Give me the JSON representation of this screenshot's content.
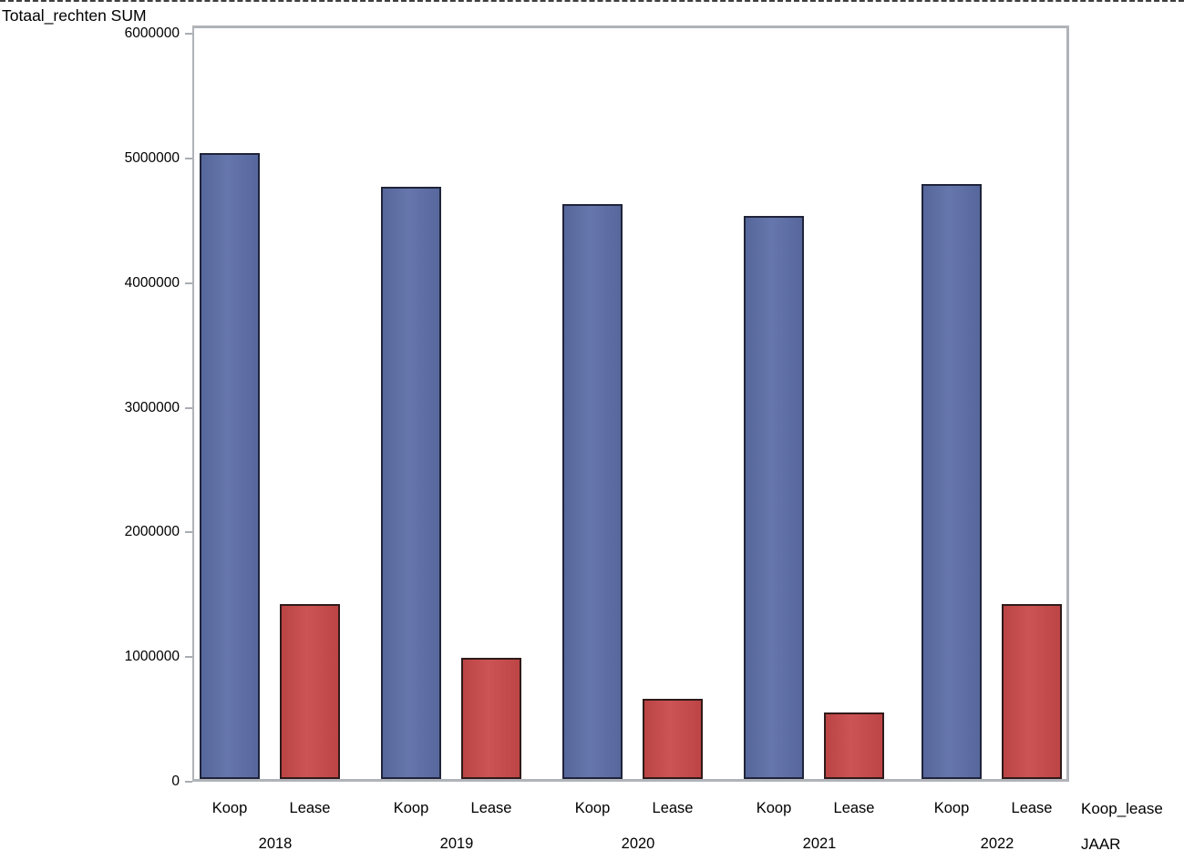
{
  "chart_data": {
    "type": "bar",
    "title": "",
    "y_axis": {
      "label": "Totaal_rechten SUM",
      "min": 0,
      "max": 6000000,
      "tick_step": 1000000,
      "tick_labels": [
        "0",
        "1000000",
        "2000000",
        "3000000",
        "4000000",
        "5000000",
        "6000000"
      ]
    },
    "x_axis": {
      "category_axis_name": "Koop_lease",
      "group_axis_name": "JAAR",
      "groups": [
        "2018",
        "2019",
        "2020",
        "2021",
        "2022"
      ],
      "categories": [
        "Koop",
        "Lease"
      ]
    },
    "series": [
      {
        "name": "Koop",
        "color": "#5c6ea7",
        "border_color": "#20243a",
        "values": [
          5020000,
          4750000,
          4610000,
          4520000,
          4770000
        ]
      },
      {
        "name": "Lease",
        "color": "#c94949",
        "border_color": "#301a1a",
        "values": [
          1400000,
          970000,
          640000,
          530000,
          1400000
        ]
      }
    ],
    "legend": "none",
    "grid": "off",
    "frame_color": "#b0b3b8",
    "background": "#ffffff"
  }
}
